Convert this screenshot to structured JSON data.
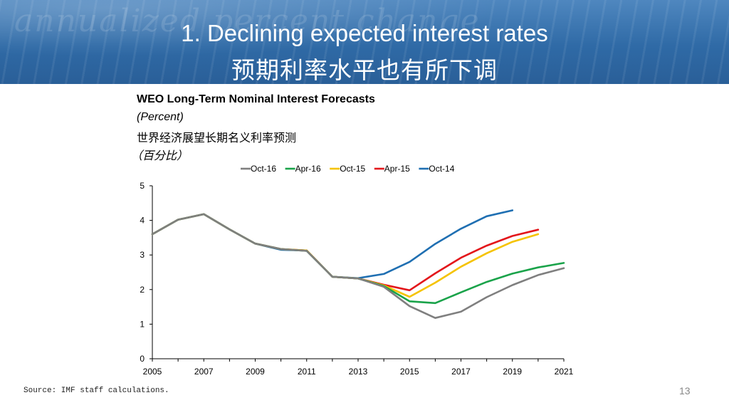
{
  "slide": {
    "watermark": "annualized percent change",
    "title_en": "1. Declining expected interest rates",
    "title_zh": "预期利率水平也有所下调",
    "source": "Source: IMF staff calculations.",
    "page_number": "13",
    "banner_color": "#2f6aa6"
  },
  "chart_data": {
    "type": "line",
    "title": "WEO Long-Term Nominal Interest Forecasts",
    "subtitle": "(Percent)",
    "title_zh": "世界经济展望长期名义利率预测",
    "subtitle_zh": "（百分比）",
    "xlabel": "",
    "ylabel": "",
    "xlim": [
      2005,
      2021
    ],
    "ylim": [
      0,
      5
    ],
    "x_ticks": [
      "2005",
      "2007",
      "2009",
      "2011",
      "2013",
      "2015",
      "2017",
      "2019",
      "2021"
    ],
    "y_ticks": [
      "0",
      "1",
      "2",
      "3",
      "4",
      "5"
    ],
    "legend_position": "top",
    "series": [
      {
        "name": "Oct-16",
        "color": "#7f7f7f",
        "points": [
          [
            2005,
            3.6
          ],
          [
            2006,
            4.02
          ],
          [
            2007,
            4.18
          ],
          [
            2008,
            3.74
          ],
          [
            2009,
            3.33
          ],
          [
            2010,
            3.17
          ],
          [
            2011,
            3.12
          ],
          [
            2012,
            2.37
          ],
          [
            2013,
            2.32
          ],
          [
            2014,
            2.08
          ],
          [
            2015,
            1.52
          ],
          [
            2016,
            1.18
          ],
          [
            2017,
            1.36
          ],
          [
            2018,
            1.78
          ],
          [
            2019,
            2.13
          ],
          [
            2020,
            2.42
          ],
          [
            2021,
            2.62
          ]
        ]
      },
      {
        "name": "Apr-16",
        "color": "#1aa34a",
        "points": [
          [
            2005,
            3.6
          ],
          [
            2006,
            4.02
          ],
          [
            2007,
            4.18
          ],
          [
            2008,
            3.74
          ],
          [
            2009,
            3.33
          ],
          [
            2010,
            3.17
          ],
          [
            2011,
            3.12
          ],
          [
            2012,
            2.37
          ],
          [
            2013,
            2.32
          ],
          [
            2014,
            2.1
          ],
          [
            2015,
            1.66
          ],
          [
            2016,
            1.61
          ],
          [
            2017,
            1.92
          ],
          [
            2018,
            2.22
          ],
          [
            2019,
            2.46
          ],
          [
            2020,
            2.64
          ],
          [
            2021,
            2.77
          ]
        ]
      },
      {
        "name": "Oct-15",
        "color": "#f5c300",
        "points": [
          [
            2005,
            3.6
          ],
          [
            2006,
            4.02
          ],
          [
            2007,
            4.18
          ],
          [
            2008,
            3.74
          ],
          [
            2009,
            3.33
          ],
          [
            2010,
            3.17
          ],
          [
            2011,
            3.13
          ],
          [
            2012,
            2.37
          ],
          [
            2013,
            2.32
          ],
          [
            2014,
            2.12
          ],
          [
            2015,
            1.79
          ],
          [
            2016,
            2.2
          ],
          [
            2017,
            2.66
          ],
          [
            2018,
            3.05
          ],
          [
            2019,
            3.38
          ],
          [
            2020,
            3.6
          ]
        ]
      },
      {
        "name": "Apr-15",
        "color": "#e3161b",
        "points": [
          [
            2005,
            3.6
          ],
          [
            2006,
            4.02
          ],
          [
            2007,
            4.18
          ],
          [
            2008,
            3.74
          ],
          [
            2009,
            3.33
          ],
          [
            2010,
            3.17
          ],
          [
            2011,
            3.13
          ],
          [
            2012,
            2.37
          ],
          [
            2013,
            2.32
          ],
          [
            2014,
            2.14
          ],
          [
            2015,
            1.98
          ],
          [
            2016,
            2.47
          ],
          [
            2017,
            2.92
          ],
          [
            2018,
            3.27
          ],
          [
            2019,
            3.55
          ],
          [
            2020,
            3.73
          ]
        ]
      },
      {
        "name": "Oct-14",
        "color": "#1f6fb2",
        "points": [
          [
            2005,
            3.6
          ],
          [
            2006,
            4.02
          ],
          [
            2007,
            4.18
          ],
          [
            2008,
            3.74
          ],
          [
            2009,
            3.33
          ],
          [
            2010,
            3.15
          ],
          [
            2011,
            3.13
          ],
          [
            2012,
            2.37
          ],
          [
            2013,
            2.33
          ],
          [
            2014,
            2.45
          ],
          [
            2015,
            2.8
          ],
          [
            2016,
            3.32
          ],
          [
            2017,
            3.76
          ],
          [
            2018,
            4.12
          ],
          [
            2019,
            4.29
          ]
        ]
      }
    ]
  }
}
